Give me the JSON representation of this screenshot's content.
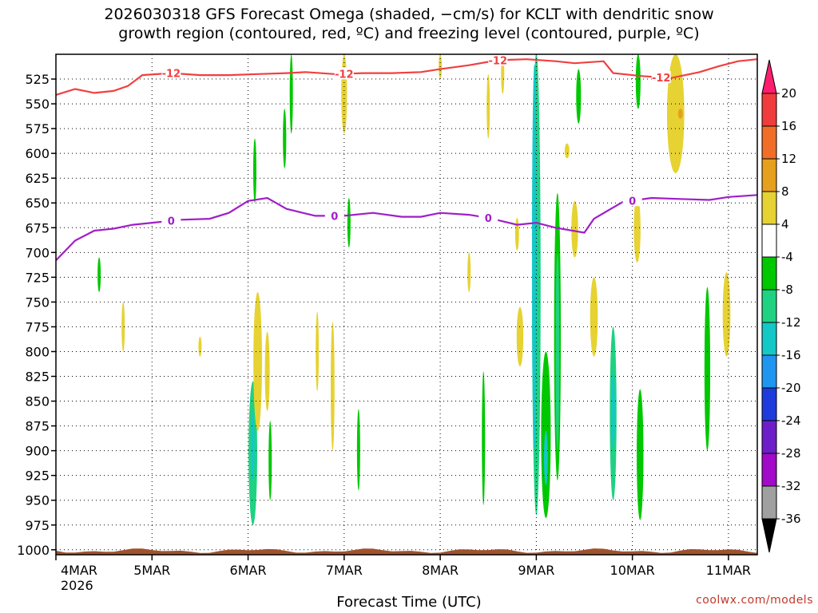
{
  "title_lines": [
    "2026030318 GFS Forecast Omega (shaded, −cm/s) for KCLT with dendritic snow",
    "growth region (contoured, red, ºC) and freezing level (contoured, purple, ºC)"
  ],
  "credit": "coolwx.com/models",
  "chart_data": {
    "type": "time-height",
    "xlabel": "Forecast Time (UTC)",
    "y_ticks": [
      525,
      550,
      575,
      600,
      625,
      650,
      675,
      700,
      725,
      750,
      775,
      800,
      825,
      850,
      875,
      900,
      925,
      950,
      975,
      1000
    ],
    "y_range_hpa": [
      500,
      1005
    ],
    "x_range_days": [
      0,
      7.3
    ],
    "x_ticks": [
      {
        "label": "4MAR",
        "day": 0
      },
      {
        "label": "5MAR",
        "day": 1
      },
      {
        "label": "6MAR",
        "day": 2
      },
      {
        "label": "7MAR",
        "day": 3
      },
      {
        "label": "8MAR",
        "day": 4
      },
      {
        "label": "9MAR",
        "day": 5
      },
      {
        "label": "10MAR",
        "day": 6
      },
      {
        "label": "11MAR",
        "day": 7
      }
    ],
    "year_label": "2026",
    "grid": true,
    "colorbar": {
      "labels": [
        20,
        16,
        12,
        8,
        4,
        -4,
        -8,
        -12,
        -16,
        -20,
        -24,
        -28,
        -32,
        -36
      ],
      "colors": [
        "#ff1e6e",
        "#f03c3c",
        "#f06e28",
        "#e6a01e",
        "#e6d232",
        "#ffffff",
        "#00c800",
        "#1ed282",
        "#14c8c8",
        "#1e96f0",
        "#1e3cdc",
        "#6e1ec8",
        "#a00ac8",
        "#a0a0a0",
        "#000000"
      ]
    },
    "dgz_contour": {
      "name": "-12",
      "color": "#f04040",
      "label": "-12",
      "points": [
        [
          0,
          541
        ],
        [
          0.2,
          535
        ],
        [
          0.4,
          539
        ],
        [
          0.6,
          537
        ],
        [
          0.75,
          532
        ],
        [
          0.9,
          521
        ],
        [
          1.2,
          519
        ],
        [
          1.5,
          521
        ],
        [
          1.8,
          521
        ],
        [
          2.1,
          520
        ],
        [
          2.4,
          519
        ],
        [
          2.6,
          518
        ],
        [
          2.9,
          520
        ],
        [
          3.2,
          519
        ],
        [
          3.5,
          519
        ],
        [
          3.8,
          518
        ],
        [
          4.0,
          515
        ],
        [
          4.3,
          511
        ],
        [
          4.6,
          506
        ],
        [
          4.9,
          505
        ],
        [
          5.2,
          507
        ],
        [
          5.4,
          509
        ],
        [
          5.7,
          507
        ],
        [
          5.8,
          519
        ],
        [
          6.1,
          522
        ],
        [
          6.4,
          524
        ],
        [
          6.7,
          518
        ],
        [
          6.9,
          512
        ],
        [
          7.1,
          507
        ],
        [
          7.3,
          505
        ]
      ],
      "label_days": [
        1.2,
        3.0,
        4.6,
        6.3
      ]
    },
    "freezing_level": {
      "name": "0",
      "color": "#a01ec8",
      "label": "0",
      "points": [
        [
          0,
          708
        ],
        [
          0.2,
          688
        ],
        [
          0.4,
          678
        ],
        [
          0.6,
          676
        ],
        [
          0.8,
          672
        ],
        [
          1.0,
          670
        ],
        [
          1.3,
          667
        ],
        [
          1.6,
          666
        ],
        [
          1.8,
          660
        ],
        [
          2.0,
          648
        ],
        [
          2.2,
          645
        ],
        [
          2.4,
          656
        ],
        [
          2.7,
          663
        ],
        [
          3.0,
          663
        ],
        [
          3.3,
          660
        ],
        [
          3.6,
          664
        ],
        [
          3.8,
          664
        ],
        [
          4.0,
          660
        ],
        [
          4.3,
          662
        ],
        [
          4.5,
          665
        ],
        [
          4.8,
          672
        ],
        [
          5.0,
          670
        ],
        [
          5.2,
          675
        ],
        [
          5.5,
          680
        ],
        [
          5.6,
          666
        ],
        [
          5.9,
          649
        ],
        [
          6.2,
          645
        ],
        [
          6.5,
          646
        ],
        [
          6.8,
          647
        ],
        [
          7.0,
          644
        ],
        [
          7.3,
          642
        ]
      ],
      "label_days": [
        1.2,
        2.9,
        4.5,
        6.0
      ]
    },
    "omega_blobs": [
      {
        "day": 5.0,
        "p_top": 498,
        "p_bot": 965,
        "width_days": 0.09,
        "value": -8
      },
      {
        "day": 4.98,
        "p_top": 510,
        "p_bot": 900,
        "width_days": 0.05,
        "value": -12
      },
      {
        "day": 5.1,
        "p_top": 800,
        "p_bot": 968,
        "width_days": 0.1,
        "value": -6
      },
      {
        "day": 5.1,
        "p_top": 880,
        "p_bot": 935,
        "width_days": 0.04,
        "value": -12
      },
      {
        "day": 5.22,
        "p_top": 640,
        "p_bot": 930,
        "width_days": 0.07,
        "value": -6
      },
      {
        "day": 5.22,
        "p_top": 700,
        "p_bot": 900,
        "width_days": 0.04,
        "value": -8
      },
      {
        "day": 5.44,
        "p_top": 515,
        "p_bot": 570,
        "width_days": 0.05,
        "value": -6
      },
      {
        "day": 6.06,
        "p_top": 500,
        "p_bot": 555,
        "width_days": 0.05,
        "value": -6
      },
      {
        "day": 5.8,
        "p_top": 775,
        "p_bot": 950,
        "width_days": 0.07,
        "value": -8
      },
      {
        "day": 5.8,
        "p_top": 820,
        "p_bot": 900,
        "width_days": 0.03,
        "value": -12
      },
      {
        "day": 6.08,
        "p_top": 838,
        "p_bot": 970,
        "width_days": 0.07,
        "value": -6
      },
      {
        "day": 6.78,
        "p_top": 735,
        "p_bot": 900,
        "width_days": 0.06,
        "value": -6
      },
      {
        "day": 2.05,
        "p_top": 830,
        "p_bot": 975,
        "width_days": 0.09,
        "value": -8
      },
      {
        "day": 2.05,
        "p_top": 860,
        "p_bot": 930,
        "width_days": 0.035,
        "value": -12
      },
      {
        "day": 2.45,
        "p_top": 500,
        "p_bot": 580,
        "width_days": 0.025,
        "value": -6
      },
      {
        "day": 2.38,
        "p_top": 555,
        "p_bot": 615,
        "width_days": 0.035,
        "value": -6
      },
      {
        "day": 2.07,
        "p_top": 585,
        "p_bot": 650,
        "width_days": 0.02,
        "value": -6
      },
      {
        "day": 2.23,
        "p_top": 870,
        "p_bot": 950,
        "width_days": 0.02,
        "value": -6
      },
      {
        "day": 3.05,
        "p_top": 645,
        "p_bot": 695,
        "width_days": 0.025,
        "value": -6
      },
      {
        "day": 3.15,
        "p_top": 858,
        "p_bot": 940,
        "width_days": 0.025,
        "value": -6
      },
      {
        "day": 4.45,
        "p_top": 820,
        "p_bot": 955,
        "width_days": 0.025,
        "value": -6
      },
      {
        "day": 0.45,
        "p_top": 705,
        "p_bot": 740,
        "width_days": 0.015,
        "value": -6
      },
      {
        "day": 2.1,
        "p_top": 740,
        "p_bot": 880,
        "width_days": 0.09,
        "value": 5
      },
      {
        "day": 2.2,
        "p_top": 780,
        "p_bot": 860,
        "width_days": 0.05,
        "value": 5
      },
      {
        "day": 3.0,
        "p_top": 500,
        "p_bot": 580,
        "width_days": 0.06,
        "value": 5
      },
      {
        "day": 2.88,
        "p_top": 770,
        "p_bot": 900,
        "width_days": 0.04,
        "value": 5
      },
      {
        "day": 2.72,
        "p_top": 760,
        "p_bot": 840,
        "width_days": 0.03,
        "value": 5
      },
      {
        "day": 4.83,
        "p_top": 755,
        "p_bot": 815,
        "width_days": 0.07,
        "value": 5
      },
      {
        "day": 4.8,
        "p_top": 665,
        "p_bot": 698,
        "width_days": 0.04,
        "value": 5
      },
      {
        "day": 6.45,
        "p_top": 500,
        "p_bot": 620,
        "width_days": 0.18,
        "value": 5
      },
      {
        "day": 6.5,
        "p_top": 555,
        "p_bot": 565,
        "width_days": 0.05,
        "value": 9
      },
      {
        "day": 6.05,
        "p_top": 643,
        "p_bot": 710,
        "width_days": 0.07,
        "value": 5
      },
      {
        "day": 5.6,
        "p_top": 725,
        "p_bot": 805,
        "width_days": 0.08,
        "value": 5
      },
      {
        "day": 5.4,
        "p_top": 648,
        "p_bot": 705,
        "width_days": 0.07,
        "value": 5
      },
      {
        "day": 6.98,
        "p_top": 720,
        "p_bot": 805,
        "width_days": 0.08,
        "value": 5
      },
      {
        "day": 5.32,
        "p_top": 590,
        "p_bot": 605,
        "width_days": 0.05,
        "value": 5
      },
      {
        "day": 4.0,
        "p_top": 500,
        "p_bot": 525,
        "width_days": 0.03,
        "value": 5
      },
      {
        "day": 4.5,
        "p_top": 520,
        "p_bot": 585,
        "width_days": 0.025,
        "value": 5
      },
      {
        "day": 4.3,
        "p_top": 700,
        "p_bot": 740,
        "width_days": 0.015,
        "value": 5
      },
      {
        "day": 4.65,
        "p_top": 500,
        "p_bot": 540,
        "width_days": 0.025,
        "value": 5
      },
      {
        "day": 0.7,
        "p_top": 750,
        "p_bot": 800,
        "width_days": 0.015,
        "value": 5
      },
      {
        "day": 1.5,
        "p_top": 785,
        "p_bot": 805,
        "width_days": 0.015,
        "value": 5
      }
    ]
  }
}
